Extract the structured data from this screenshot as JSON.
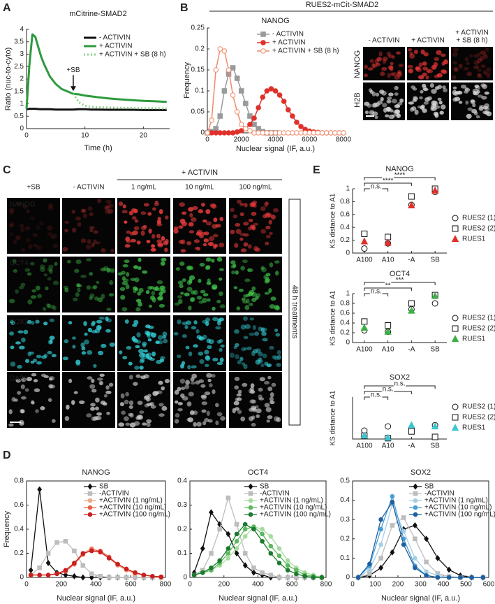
{
  "panel_labels": [
    "A",
    "B",
    "C",
    "D",
    "E"
  ],
  "panel_b": {
    "header": "RUES2-mCit-SMAD2",
    "columns": [
      [
        "- ACTIVIN"
      ],
      [
        "+ ACTIVIN"
      ],
      [
        "+ ACTIVIN",
        "+ SB (8 h)"
      ]
    ],
    "rows": [
      "NANOG",
      "H2B"
    ]
  },
  "panel_c": {
    "group": "+ ACTIVIN",
    "columns": [
      "+SB",
      "- ACTIVIN",
      "1 ng/mL",
      "10 ng/mL",
      "100 ng/mL"
    ],
    "rows": [
      "NANOG",
      "OCT4",
      "SOX2",
      "DAPI"
    ],
    "side_label": "48 h treatments"
  },
  "chart_data": [
    {
      "type": "line",
      "title": "mCitrine-SMAD2",
      "xlabel": "Time (h)",
      "ylabel": "Ratio (nuc-to-cyto)",
      "annotation": "+SB",
      "legend": "upper right",
      "x": [
        0,
        0.5,
        1,
        1.5,
        2,
        2.5,
        3,
        4,
        5,
        6,
        7,
        8,
        9,
        10,
        11,
        12,
        14,
        16,
        18,
        20,
        22,
        24
      ],
      "xlim": [
        0,
        24.5
      ],
      "xticks": [
        0,
        10,
        20
      ],
      "ylim": [
        0,
        4
      ],
      "yticks": [
        0,
        0.5,
        1,
        1.5,
        2,
        2.5,
        3,
        3.5,
        4
      ],
      "series": [
        {
          "name": "- ACTIVIN",
          "color": "#111111",
          "values": [
            0.78,
            0.8,
            0.8,
            0.8,
            0.79,
            0.78,
            0.78,
            0.78,
            0.77,
            0.77,
            0.77,
            0.77,
            0.78,
            0.78,
            0.77,
            0.77,
            0.76,
            0.76,
            0.76,
            0.75,
            0.75,
            0.75
          ]
        },
        {
          "name": "+ ACTIVIN",
          "color": "#2e9a3e",
          "values": [
            0.8,
            2.6,
            3.8,
            3.7,
            3.3,
            2.9,
            2.6,
            2.1,
            1.8,
            1.6,
            1.5,
            1.4,
            1.38,
            1.33,
            1.3,
            1.27,
            1.22,
            1.18,
            1.15,
            1.12,
            1.1,
            1.08
          ]
        },
        {
          "name": "+ ACTIVIN + SB (8 h)",
          "color": "#8fd08a",
          "dashed": true,
          "values": [
            null,
            null,
            null,
            null,
            null,
            null,
            null,
            null,
            null,
            null,
            null,
            1.4,
            1.05,
            0.92,
            0.88,
            0.86,
            0.85,
            0.84,
            0.83,
            0.82,
            0.82,
            0.81
          ]
        }
      ]
    },
    {
      "type": "line",
      "title": "NANOG",
      "xlabel": "Nuclear signal (IF, a.u.)",
      "ylabel": "Frequency",
      "legend": "upper right",
      "x": [
        0,
        250,
        500,
        750,
        1000,
        1250,
        1500,
        1750,
        2000,
        2250,
        2500,
        2750,
        3000,
        3250,
        3500,
        3750,
        4000,
        4250,
        4500,
        4750,
        5000,
        5250,
        5500,
        5750,
        6000,
        6250,
        6500,
        6750,
        7000,
        7250,
        7500,
        7750,
        8000
      ],
      "xlim": [
        0,
        8000
      ],
      "xticks": [
        0,
        2000,
        4000,
        6000,
        8000
      ],
      "ylim": [
        0,
        0.25
      ],
      "yticks": [
        0,
        0.05,
        0.1,
        0.15,
        0.2,
        0.25
      ],
      "series": [
        {
          "name": "- ACTIVIN",
          "color": "#9a9a9a",
          "marker": "square",
          "values": [
            0,
            0.003,
            0.01,
            0.04,
            0.1,
            0.14,
            0.155,
            0.13,
            0.1,
            0.07,
            0.04,
            0.02,
            0.01,
            0.003,
            0,
            0,
            0,
            null,
            null,
            null,
            null,
            null,
            null,
            null,
            null,
            null,
            null,
            null,
            null,
            null,
            null,
            null,
            null
          ]
        },
        {
          "name": "+ ACTIVIN",
          "color": "#e0302a",
          "marker": "circle",
          "values": [
            0,
            0,
            0,
            0,
            0,
            0,
            0,
            0.002,
            0.005,
            0.01,
            0.02,
            0.035,
            0.06,
            0.085,
            0.1,
            0.105,
            0.1,
            0.09,
            0.075,
            0.055,
            0.04,
            0.025,
            0.015,
            0.008,
            0.004,
            0.002,
            0.001,
            0,
            0,
            0,
            0,
            0,
            0
          ]
        },
        {
          "name": "+ ACTIVIN + SB (8 h)",
          "color": "#f08a6a",
          "marker": "circle",
          "open": true,
          "values": [
            0,
            0.03,
            0.15,
            0.2,
            0.195,
            0.15,
            0.09,
            0.05,
            0.02,
            0.01,
            0.005,
            0,
            0,
            0,
            0,
            0,
            0,
            0,
            0,
            0,
            0,
            0,
            0,
            0,
            0,
            0,
            0,
            0,
            0,
            0,
            0,
            0,
            0
          ]
        }
      ]
    },
    {
      "type": "line",
      "title": "NANOG",
      "xlabel": "Nuclear signal (IF, a.u.)",
      "ylabel": "Frequency",
      "legend": "upper right",
      "x": [
        25,
        75,
        125,
        175,
        225,
        275,
        325,
        375,
        425,
        475,
        525,
        575,
        625,
        675,
        725,
        775
      ],
      "xlim": [
        0,
        800
      ],
      "xticks": [
        0,
        200,
        400,
        600,
        800
      ],
      "ylim": [
        0,
        0.8
      ],
      "yticks": [
        0,
        0.2,
        0.4,
        0.6,
        0.8
      ],
      "series": [
        {
          "name": "SB",
          "color": "#111111",
          "marker": "diamond",
          "values": [
            0.06,
            0.73,
            0.12,
            0.04,
            0.02,
            0.01,
            0,
            0,
            0,
            0,
            0,
            0,
            0,
            0,
            0,
            0
          ]
        },
        {
          "name": "-ACTIVIN",
          "color": "#bdbdbd",
          "marker": "square",
          "values": [
            0.02,
            0.08,
            0.2,
            0.29,
            0.3,
            0.22,
            0.1,
            0.03,
            0.01,
            0,
            0,
            0,
            0,
            0,
            0,
            0
          ]
        },
        {
          "name": "+ACTIVIN (1 ng/mL)",
          "color": "#f4a582",
          "marker": "circle",
          "values": [
            0.02,
            0.02,
            0.02,
            0.03,
            0.06,
            0.12,
            0.2,
            0.24,
            0.21,
            0.16,
            0.1,
            0.06,
            0.03,
            0.02,
            0.01,
            0
          ]
        },
        {
          "name": "+ACTIVIN (10 ng/mL)",
          "color": "#e8604a",
          "marker": "circle",
          "values": [
            0.02,
            0.02,
            0.02,
            0.03,
            0.05,
            0.11,
            0.19,
            0.23,
            0.22,
            0.17,
            0.11,
            0.07,
            0.04,
            0.02,
            0.01,
            0.005
          ]
        },
        {
          "name": "+ACTIVIN (100 ng/mL)",
          "color": "#c81e1e",
          "marker": "circle",
          "values": [
            0.02,
            0.02,
            0.02,
            0.03,
            0.06,
            0.12,
            0.2,
            0.22,
            0.21,
            0.16,
            0.11,
            0.07,
            0.04,
            0.02,
            0.01,
            0.005
          ]
        }
      ]
    },
    {
      "type": "line",
      "title": "OCT4",
      "xlabel": "Nuclear signal (IF, a.u.)",
      "legend": "upper right",
      "x": [
        25,
        75,
        125,
        175,
        225,
        275,
        325,
        375,
        425,
        475,
        525,
        575,
        625,
        675,
        725,
        775
      ],
      "xlim": [
        0,
        800
      ],
      "xticks": [
        0,
        200,
        400,
        600,
        800
      ],
      "ylim": [
        0,
        0.4
      ],
      "yticks": [
        0,
        0.1,
        0.2,
        0.3,
        0.4
      ],
      "series": [
        {
          "name": "SB",
          "color": "#111111",
          "marker": "diamond",
          "values": [
            0.02,
            0.12,
            0.27,
            0.22,
            0.18,
            0.1,
            0.05,
            0.02,
            0.01,
            0,
            0,
            0,
            0,
            0,
            0,
            0
          ]
        },
        {
          "name": "-ACTIVIN",
          "color": "#bdbdbd",
          "marker": "square",
          "values": [
            0.01,
            0.03,
            0.1,
            0.2,
            0.33,
            0.22,
            0.1,
            0.04,
            0.02,
            0.01,
            0,
            0,
            0,
            0,
            0,
            0
          ]
        },
        {
          "name": "+ACTIVIN (1 ng/mL)",
          "color": "#a6dba0",
          "marker": "circle",
          "values": [
            0.01,
            0.02,
            0.03,
            0.05,
            0.08,
            0.12,
            0.17,
            0.21,
            0.2,
            0.17,
            0.12,
            0.07,
            0.04,
            0.02,
            0.01,
            0
          ]
        },
        {
          "name": "+ACTIVIN (10 ng/mL)",
          "color": "#5cb85c",
          "marker": "circle",
          "values": [
            0.01,
            0.02,
            0.03,
            0.06,
            0.1,
            0.15,
            0.2,
            0.21,
            0.18,
            0.13,
            0.09,
            0.05,
            0.03,
            0.01,
            0.005,
            0
          ]
        },
        {
          "name": "+ACTIVIN (100 ng/mL)",
          "color": "#1b7a2e",
          "marker": "circle",
          "values": [
            0.01,
            0.02,
            0.04,
            0.07,
            0.12,
            0.18,
            0.22,
            0.2,
            0.15,
            0.1,
            0.06,
            0.03,
            0.015,
            0.005,
            0,
            0
          ]
        }
      ]
    },
    {
      "type": "line",
      "title": "SOX2",
      "xlabel": "Nuclear signal (IF, a.u.)",
      "legend": "upper right",
      "x": [
        25,
        75,
        125,
        175,
        225,
        275,
        325,
        375,
        425,
        475,
        525,
        575
      ],
      "xlim": [
        0,
        600
      ],
      "xticks": [
        0,
        100,
        200,
        300,
        400,
        500,
        600
      ],
      "ylim": [
        0,
        0.5
      ],
      "yticks": [
        0,
        0.1,
        0.2,
        0.3,
        0.4,
        0.5
      ],
      "series": [
        {
          "name": "SB",
          "color": "#111111",
          "marker": "diamond",
          "values": [
            0,
            0.01,
            0.05,
            0.13,
            0.25,
            0.27,
            0.2,
            0.1,
            0.04,
            0.01,
            0,
            0
          ]
        },
        {
          "name": "-ACTIVIN",
          "color": "#bdbdbd",
          "marker": "square",
          "values": [
            0,
            0.02,
            0.1,
            0.27,
            0.31,
            0.2,
            0.08,
            0.02,
            0.005,
            0,
            0,
            0
          ]
        },
        {
          "name": "+ACTIVIN (1 ng/mL)",
          "color": "#a6cee3",
          "marker": "circle",
          "values": [
            0,
            0.04,
            0.17,
            0.38,
            0.24,
            0.1,
            0.03,
            0.01,
            0,
            0,
            0,
            0
          ]
        },
        {
          "name": "+ACTIVIN (10 ng/mL)",
          "color": "#4a9fd4",
          "marker": "circle",
          "values": [
            0,
            0.06,
            0.25,
            0.42,
            0.2,
            0.06,
            0.01,
            0,
            0,
            0,
            0,
            0
          ]
        },
        {
          "name": "+ACTIVIN (100 ng/mL)",
          "color": "#1f5fa0",
          "marker": "circle",
          "values": [
            0,
            0.07,
            0.3,
            0.39,
            0.17,
            0.05,
            0.01,
            0,
            0,
            0,
            0,
            0
          ]
        }
      ]
    },
    {
      "type": "scatter",
      "title": "NANOG",
      "ylabel": "KS distance to A1",
      "legend": "outside right",
      "categories": [
        "A100",
        "A10",
        "-A",
        "SB"
      ],
      "ylim": [
        0,
        1
      ],
      "yticks": [
        0,
        0.2,
        0.4,
        0.6,
        0.8,
        1
      ],
      "annotations": [
        {
          "text": "****",
          "between": [
            "A100",
            "SB"
          ]
        },
        {
          "text": "****",
          "between": [
            "A100",
            "-A"
          ]
        },
        {
          "text": "n.s.",
          "between": [
            "A100",
            "A10"
          ]
        }
      ],
      "series": [
        {
          "name": "RUES2 (1)",
          "color": "#111111",
          "marker": "circle",
          "open": true,
          "values": [
            0.07,
            0.15,
            0.75,
            0.95
          ]
        },
        {
          "name": "RUES2 (2)",
          "color": "#111111",
          "marker": "square",
          "open": true,
          "values": [
            0.3,
            0.25,
            0.88,
            1.0
          ]
        },
        {
          "name": "RUES1",
          "color": "#e0302a",
          "marker": "triangle",
          "values": [
            0.18,
            0.16,
            0.74,
            0.97
          ]
        }
      ]
    },
    {
      "type": "scatter",
      "title": "OCT4",
      "ylabel": "KS distance to A1",
      "legend": "outside right",
      "categories": [
        "A100",
        "A10",
        "-A",
        "SB"
      ],
      "ylim": [
        0,
        1
      ],
      "yticks": [
        0,
        0.2,
        0.4,
        0.6,
        0.8,
        1
      ],
      "annotations": [
        {
          "text": "***",
          "between": [
            "A100",
            "SB"
          ]
        },
        {
          "text": "**",
          "between": [
            "A100",
            "-A"
          ]
        },
        {
          "text": "n.s.",
          "between": [
            "A100",
            "A10"
          ]
        }
      ],
      "series": [
        {
          "name": "RUES2 (1)",
          "color": "#111111",
          "marker": "circle",
          "open": true,
          "values": [
            0.25,
            0.22,
            0.68,
            0.8
          ]
        },
        {
          "name": "RUES2 (2)",
          "color": "#111111",
          "marker": "square",
          "open": true,
          "values": [
            0.43,
            0.35,
            0.8,
            0.97
          ]
        },
        {
          "name": "RUES1",
          "color": "#3cb043",
          "marker": "triangle",
          "values": [
            0.3,
            0.22,
            0.65,
            0.95
          ]
        }
      ]
    },
    {
      "type": "scatter",
      "title": "SOX2",
      "ylabel": "KS distance to A1",
      "legend": "outside right",
      "categories": [
        "A100",
        "A10",
        "-A",
        "SB"
      ],
      "ylim": [
        0,
        1
      ],
      "annotations": [
        {
          "text": "n.s.",
          "between": [
            "A100",
            "SB"
          ]
        },
        {
          "text": "n.s.",
          "between": [
            "A100",
            "-A"
          ]
        },
        {
          "text": "n.s.",
          "between": [
            "A100",
            "A10"
          ]
        }
      ],
      "series": [
        {
          "name": "RUES2 (1)",
          "color": "#111111",
          "marker": "circle",
          "open": true,
          "values": [
            0.2,
            0.3,
            0.25,
            0.33
          ]
        },
        {
          "name": "RUES2 (2)",
          "color": "#111111",
          "marker": "square",
          "open": true,
          "values": [
            0.08,
            0.02,
            0.18,
            0.05
          ]
        },
        {
          "name": "RUES1",
          "color": "#3cc6d0",
          "marker": "triangle",
          "values": [
            0.08,
            0.03,
            0.33,
            0.3
          ]
        }
      ]
    }
  ]
}
